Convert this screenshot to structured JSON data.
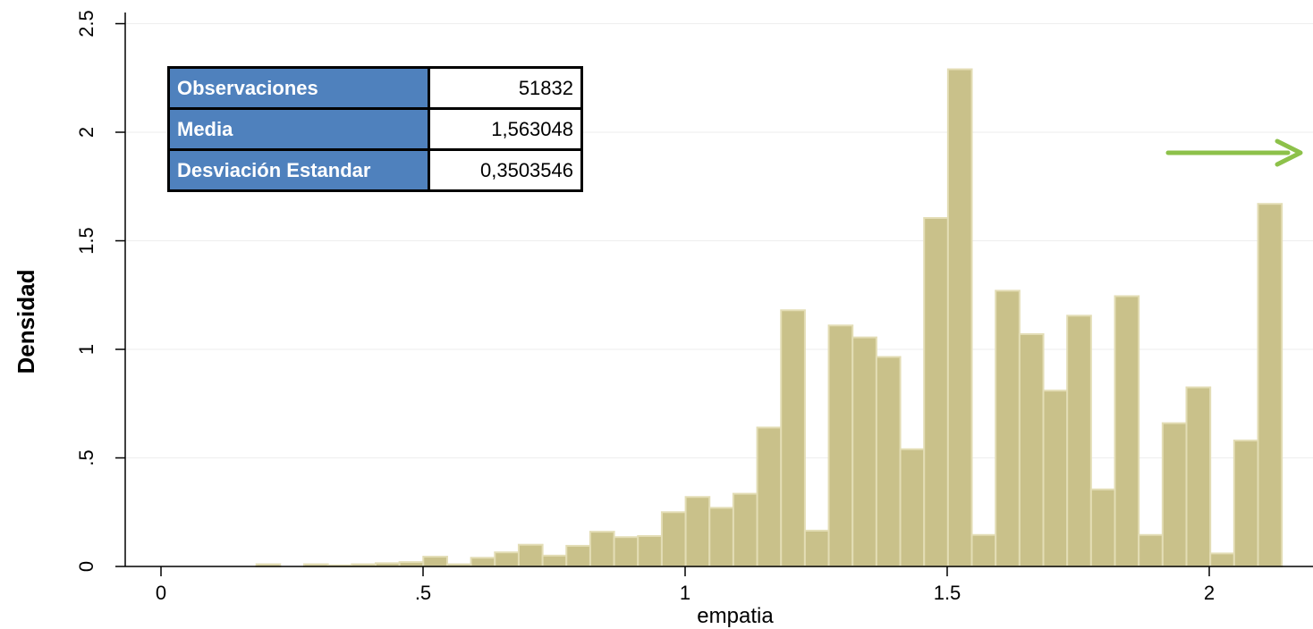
{
  "chart_data": {
    "type": "bar",
    "xlabel": "empatia",
    "ylabel": "Densidad",
    "xlim": [
      0,
      2.15
    ],
    "ylim": [
      0,
      2.5
    ],
    "x_ticks": [
      "0",
      ".5",
      "1",
      "1.5",
      "2"
    ],
    "x_tick_values": [
      0,
      0.5,
      1,
      1.5,
      2
    ],
    "y_ticks": [
      "0",
      ".5",
      "1",
      "1.5",
      "2",
      "2.5"
    ],
    "y_tick_values": [
      0,
      0.5,
      1,
      1.5,
      2,
      2.5
    ],
    "bin_width": 0.0455,
    "bin_left": [
      0.0,
      0.0455,
      0.091,
      0.1365,
      0.182,
      0.2275,
      0.273,
      0.3185,
      0.364,
      0.4095,
      0.455,
      0.5005,
      0.546,
      0.5915,
      0.637,
      0.6825,
      0.728,
      0.7735,
      0.819,
      0.8645,
      0.91,
      0.9555,
      1.001,
      1.0465,
      1.092,
      1.1375,
      1.183,
      1.2285,
      1.274,
      1.3195,
      1.365,
      1.4105,
      1.456,
      1.5015,
      1.547,
      1.5925,
      1.638,
      1.6835,
      1.729,
      1.7745,
      1.82,
      1.8655,
      1.911,
      1.9565,
      2.002,
      2.0475,
      2.093
    ],
    "values": [
      0.0,
      0.0,
      0.0,
      0.0,
      0.01,
      0.0,
      0.01,
      0.005,
      0.01,
      0.015,
      0.02,
      0.045,
      0.01,
      0.04,
      0.065,
      0.1,
      0.05,
      0.095,
      0.16,
      0.135,
      0.14,
      0.25,
      0.32,
      0.27,
      0.335,
      0.64,
      1.18,
      0.165,
      1.11,
      1.055,
      0.965,
      0.54,
      1.605,
      2.29,
      0.145,
      1.27,
      1.07,
      0.81,
      1.155,
      0.355,
      1.245,
      0.145,
      0.66,
      0.825,
      0.06,
      0.58,
      1.67
    ]
  },
  "stats_table": [
    {
      "label": "Observaciones",
      "value": "51832"
    },
    {
      "label": "Media",
      "value": "1,563048"
    },
    {
      "label": "Desviación Estandar",
      "value": "0,3503546"
    }
  ],
  "colors": {
    "bar_fill": "#c9c18a",
    "bar_edge": "#e3ddb5",
    "table_header": "#4f81bd",
    "arrow": "#8dc14a"
  },
  "icons": {
    "arrow": "arrow-right-icon"
  }
}
